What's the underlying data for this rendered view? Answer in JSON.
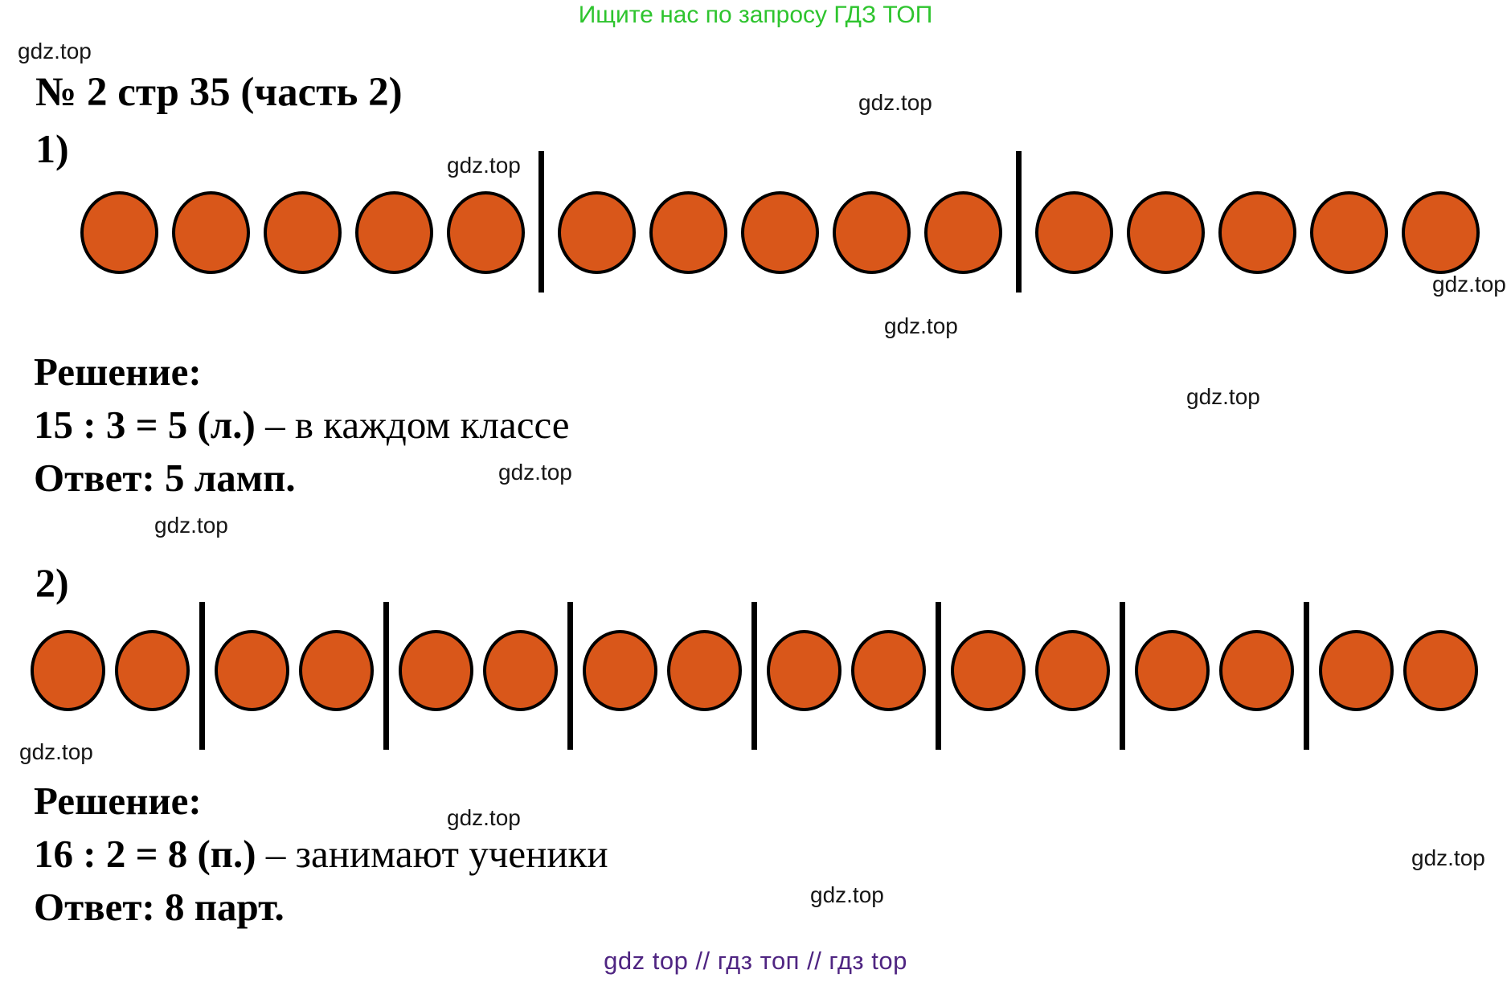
{
  "header": {
    "text": "Ищите нас по запросу ГДЗ ТОП",
    "color": "#2ec42e"
  },
  "watermark": {
    "text": "gdz.top"
  },
  "title": "№ 2 стр 35 (часть 2)",
  "problem1": {
    "label": "1)",
    "diagram": {
      "type": "circle-groups",
      "total_circles": 15,
      "groups": 3,
      "per_group": 5,
      "circle_color": "#d9571a",
      "outline_color": "#000000"
    },
    "solution_heading": "Решение:",
    "equation_bold": "15 : 3 = 5 (л.)",
    "equation_rest": " – в каждом классе",
    "answer": "Ответ: 5 ламп."
  },
  "problem2": {
    "label": "2)",
    "diagram": {
      "type": "circle-groups",
      "total_circles": 16,
      "groups": 8,
      "per_group": 2,
      "circle_color": "#d9571a",
      "outline_color": "#000000"
    },
    "solution_heading": "Решение:",
    "equation_bold": "16 : 2 = 8 (п.)",
    "equation_rest": " – занимают ученики",
    "answer": "Ответ: 8 парт."
  },
  "footer": {
    "text": "gdz top  //  гдз топ  //  гдз top",
    "color": "#4f2582"
  }
}
